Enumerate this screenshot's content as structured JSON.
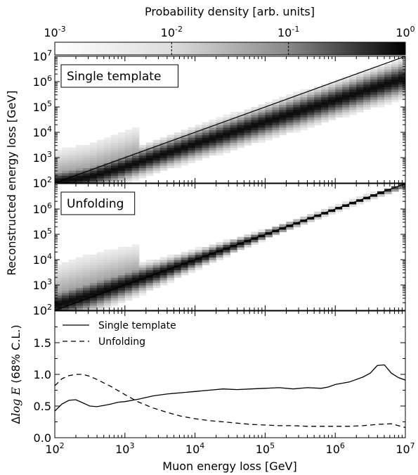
{
  "colorbar": {
    "label": "Probability density [arb. units]",
    "ticks": [
      {
        "base": "10",
        "exp": "-3",
        "value": 0.001
      },
      {
        "base": "10",
        "exp": "-2",
        "value": 0.01
      },
      {
        "base": "10",
        "exp": "-1",
        "value": 0.1
      },
      {
        "base": "10",
        "exp": "0",
        "value": 1
      }
    ],
    "colormap": "white-to-black (log scale)"
  },
  "shared_xaxis": {
    "label": "Muon energy loss [GeV]",
    "scale": "log",
    "range": [
      100,
      10000000
    ],
    "ticks": [
      {
        "base": "10",
        "exp": "2",
        "value": 100
      },
      {
        "base": "10",
        "exp": "3",
        "value": 1000
      },
      {
        "base": "10",
        "exp": "4",
        "value": 10000
      },
      {
        "base": "10",
        "exp": "5",
        "value": 100000
      },
      {
        "base": "10",
        "exp": "6",
        "value": 1000000
      },
      {
        "base": "10",
        "exp": "7",
        "value": 10000000
      }
    ]
  },
  "upper_ylabel": "Reconstructed energy loss [GeV]",
  "upper_yticks": [
    {
      "base": "10",
      "exp": "2",
      "value": 100
    },
    {
      "base": "10",
      "exp": "3",
      "value": 1000
    },
    {
      "base": "10",
      "exp": "4",
      "value": 10000
    },
    {
      "base": "10",
      "exp": "5",
      "value": 100000
    },
    {
      "base": "10",
      "exp": "6",
      "value": 1000000
    },
    {
      "base": "10",
      "exp": "7",
      "value": 10000000
    }
  ],
  "chart_data": [
    {
      "type": "heatmap",
      "label": "Single template",
      "xscale": "log",
      "yscale": "log",
      "xlim": [
        100,
        10000000
      ],
      "ylim": [
        100,
        10000000
      ],
      "diagonal_line": {
        "x": [
          100,
          10000000
        ],
        "y": [
          100,
          10000000
        ]
      },
      "ridge": {
        "logx": [
          2.0,
          2.5,
          3.0,
          3.5,
          4.0,
          4.5,
          5.0,
          5.5,
          6.0,
          6.5,
          7.0
        ],
        "logy": [
          2.05,
          2.25,
          2.65,
          3.1,
          3.55,
          3.98,
          4.42,
          4.85,
          5.28,
          5.72,
          6.15
        ],
        "width_dex": [
          0.42,
          0.45,
          0.47,
          0.48,
          0.5,
          0.52,
          0.53,
          0.55,
          0.55,
          0.57,
          0.58
        ]
      }
    },
    {
      "type": "heatmap",
      "label": "Unfolding",
      "xscale": "log",
      "yscale": "log",
      "xlim": [
        100,
        10000000
      ],
      "ylim": [
        100,
        10000000
      ],
      "diagonal_line": {
        "x": [
          100,
          10000000
        ],
        "y": [
          100,
          10000000
        ]
      },
      "ridge": {
        "logx": [
          2.0,
          2.5,
          3.0,
          3.5,
          4.0,
          4.5,
          5.0,
          5.5,
          6.0,
          6.5,
          7.0
        ],
        "logy": [
          2.2,
          2.6,
          3.05,
          3.5,
          4.0,
          4.5,
          5.0,
          5.5,
          6.0,
          6.5,
          6.95
        ],
        "width_dex": [
          0.55,
          0.55,
          0.5,
          0.4,
          0.3,
          0.22,
          0.14,
          0.1,
          0.08,
          0.08,
          0.08
        ]
      }
    },
    {
      "type": "line",
      "xlabel": "Muon energy loss [GeV]",
      "ylabel": "Δlog E (68% C.L.)",
      "xscale": "log",
      "xlim": [
        100,
        10000000
      ],
      "ylim": [
        0.0,
        2.0
      ],
      "yticks": [
        "0.0",
        "0.5",
        "1.0",
        "1.5"
      ],
      "legend_position": "top-left",
      "series": [
        {
          "name": "Single template",
          "style": "solid",
          "logx": [
            2.0,
            2.1,
            2.2,
            2.3,
            2.4,
            2.5,
            2.6,
            2.7,
            2.8,
            2.9,
            3.0,
            3.2,
            3.4,
            3.6,
            3.8,
            4.0,
            4.2,
            4.4,
            4.6,
            4.8,
            5.0,
            5.2,
            5.4,
            5.6,
            5.8,
            5.9,
            6.0,
            6.2,
            6.4,
            6.5,
            6.6,
            6.7,
            6.8,
            6.9,
            7.0
          ],
          "y": [
            0.42,
            0.53,
            0.59,
            0.6,
            0.55,
            0.5,
            0.49,
            0.51,
            0.53,
            0.56,
            0.57,
            0.61,
            0.66,
            0.69,
            0.71,
            0.73,
            0.75,
            0.77,
            0.76,
            0.77,
            0.78,
            0.79,
            0.77,
            0.79,
            0.78,
            0.8,
            0.84,
            0.88,
            0.96,
            1.02,
            1.14,
            1.15,
            1.02,
            0.95,
            0.91
          ]
        },
        {
          "name": "Unfolding",
          "style": "dashed",
          "logx": [
            2.0,
            2.1,
            2.2,
            2.3,
            2.4,
            2.5,
            2.6,
            2.8,
            3.0,
            3.2,
            3.4,
            3.6,
            3.8,
            4.0,
            4.2,
            4.4,
            4.6,
            4.8,
            5.0,
            5.2,
            5.4,
            5.6,
            5.8,
            6.0,
            6.2,
            6.4,
            6.6,
            6.8,
            6.9,
            7.0
          ],
          "y": [
            0.82,
            0.93,
            0.98,
            1.0,
            1.0,
            0.97,
            0.92,
            0.81,
            0.68,
            0.56,
            0.47,
            0.4,
            0.34,
            0.3,
            0.27,
            0.25,
            0.23,
            0.21,
            0.2,
            0.19,
            0.19,
            0.18,
            0.18,
            0.18,
            0.18,
            0.19,
            0.21,
            0.22,
            0.19,
            0.16
          ]
        }
      ]
    }
  ]
}
